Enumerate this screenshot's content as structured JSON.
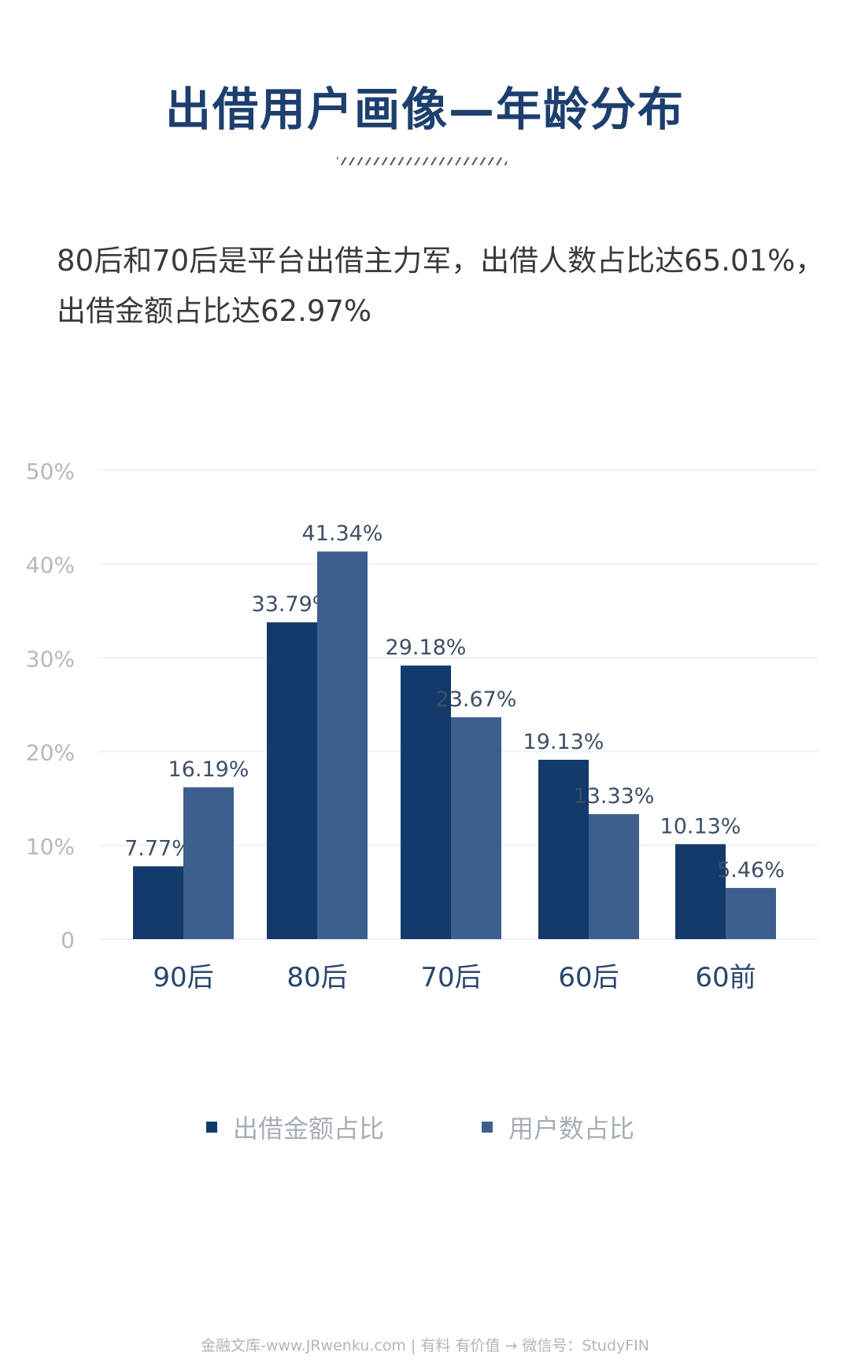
{
  "title": "出借用户画像—年龄分布",
  "subtitle": {
    "line1": "80后和70后是平台出借主力军，出借人数占比达65.01%，",
    "line2": "出借金额占比达62.97%"
  },
  "colors": {
    "title": "#1d3f6e",
    "series1": "#133a6b",
    "series2": "#3d5f8d",
    "axis_text": "#b3b9c0",
    "grid": "#eef0f2"
  },
  "chart_data": {
    "type": "bar",
    "categories": [
      "90后",
      "80后",
      "70后",
      "60后",
      "60前"
    ],
    "series": [
      {
        "name": "出借金额占比",
        "values": [
          7.77,
          33.79,
          29.18,
          19.13,
          10.13
        ],
        "labels": [
          "7.77%",
          "33.79%",
          "29.18%",
          "19.13%",
          "10.13%"
        ]
      },
      {
        "name": "用户数占比",
        "values": [
          16.19,
          41.34,
          23.67,
          13.33,
          5.46
        ],
        "labels": [
          "16.19%",
          "41.34%",
          "23.67%",
          "13.33%",
          "5.46%"
        ]
      }
    ],
    "yticks": [
      "0",
      "10%",
      "20%",
      "30%",
      "40%",
      "50%"
    ],
    "ylim": [
      0,
      50
    ],
    "grid": true,
    "legend_position": "bottom"
  },
  "legend": {
    "item1": "出借金额占比",
    "item2": "用户数占比"
  },
  "footer": "金融文库-www.JRwenku.com | 有料  有价值 → 微信号：StudyFIN"
}
